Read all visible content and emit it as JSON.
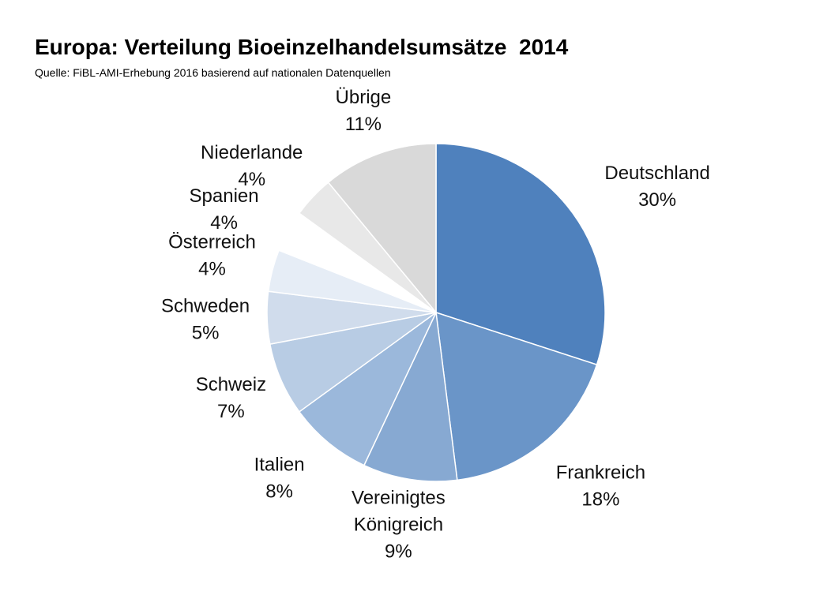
{
  "title": "Europa: Verteilung Bioeinzelhandelsumsätze  2014",
  "subtitle": "Quelle: FiBL-AMI-Erhebung 2016 basierend auf nationalen Datenquellen",
  "chart_data": {
    "type": "pie",
    "title": "Europa: Verteilung Bioeinzelhandelsumsätze  2014",
    "subtitle": "Quelle: FiBL-AMI-Erhebung 2016 basierend auf nationalen Datenquellen",
    "categories": [
      "Deutschland",
      "Frankreich",
      "Vereinigtes Königreich",
      "Italien",
      "Schweiz",
      "Schweden",
      "Österreich",
      "Spanien",
      "Niederlande",
      "Übrige"
    ],
    "values": [
      30,
      18,
      9,
      8,
      7,
      5,
      4,
      4,
      4,
      11
    ],
    "value_labels": [
      "30%",
      "18%",
      "9%",
      "8%",
      "7%",
      "5%",
      "4%",
      "4%",
      "4%",
      "11%"
    ],
    "colors": [
      "#4f81bd",
      "#6a95c8",
      "#87a9d2",
      "#9bb8db",
      "#b8cce4",
      "#d0dcec",
      "#e6edf6",
      "#ffffff",
      "#e8e8e8",
      "#d9d9d9"
    ],
    "legend": "none",
    "label_lines": [
      [
        "Deutschland",
        "30%"
      ],
      [
        "Frankreich",
        "18%"
      ],
      [
        "Vereinigtes",
        "Königreich",
        "9%"
      ],
      [
        "Italien",
        "8%"
      ],
      [
        "Schweiz",
        "7%"
      ],
      [
        "Schweden",
        "5%"
      ],
      [
        "Österreich",
        "4%"
      ],
      [
        "Spanien",
        "4%"
      ],
      [
        "Niederlande",
        "4%"
      ],
      [
        "Übrige",
        "11%"
      ]
    ]
  }
}
